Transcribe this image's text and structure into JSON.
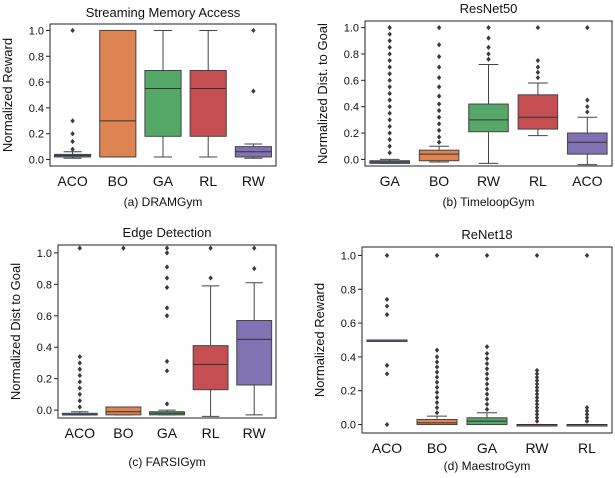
{
  "chart_data": [
    {
      "type": "box",
      "title": "Streaming Memory Access",
      "caption": "(a) DRAMGym",
      "xlabel": "",
      "ylabel": "Normalized Reward",
      "ylim": [
        -0.05,
        1.05
      ],
      "yticks": [
        0.0,
        0.2,
        0.4,
        0.6,
        0.8,
        1.0
      ],
      "ytick_labels": [
        "0.0",
        "0.2",
        "0.4",
        "0.6",
        "0.8",
        "1.0"
      ],
      "categories": [
        "ACO",
        "BO",
        "GA",
        "RL",
        "RW"
      ],
      "colors": [
        "#5b7fc0",
        "#dd8452",
        "#55a868",
        "#c44e52",
        "#8172b3"
      ],
      "boxes": [
        {
          "q1": 0.02,
          "median": 0.03,
          "q3": 0.04,
          "whislo": 0.01,
          "whishi": 0.06,
          "fliers": [
            0.08,
            0.14,
            0.2,
            0.3,
            1.0
          ]
        },
        {
          "q1": 0.02,
          "median": 0.3,
          "q3": 1.0,
          "whislo": 0.02,
          "whishi": 1.0,
          "fliers": []
        },
        {
          "q1": 0.18,
          "median": 0.55,
          "q3": 0.69,
          "whislo": 0.02,
          "whishi": 1.0,
          "fliers": []
        },
        {
          "q1": 0.18,
          "median": 0.55,
          "q3": 0.69,
          "whislo": 0.02,
          "whishi": 1.0,
          "fliers": []
        },
        {
          "q1": 0.02,
          "median": 0.06,
          "q3": 0.1,
          "whislo": 0.01,
          "whishi": 0.12,
          "fliers": [
            0.53,
            1.0
          ]
        }
      ]
    },
    {
      "type": "box",
      "title": "ResNet50",
      "caption": "(b) TimeloopGym",
      "xlabel": "",
      "ylabel": "Normalized Dist. to Goal",
      "ylim": [
        -0.05,
        1.05
      ],
      "yticks": [
        0.0,
        0.2,
        0.4,
        0.6,
        0.8,
        1.0
      ],
      "ytick_labels": [
        "0.0",
        "0.2",
        "0.4",
        "0.6",
        "0.8",
        "1.0"
      ],
      "categories": [
        "GA",
        "BO",
        "RW",
        "RL",
        "ACO"
      ],
      "colors": [
        "#5b7fc0",
        "#dd8452",
        "#55a868",
        "#c44e52",
        "#8172b3"
      ],
      "boxes": [
        {
          "q1": -0.03,
          "median": -0.02,
          "q3": -0.01,
          "whislo": -0.03,
          "whishi": 0.0,
          "fliers": [
            0.05,
            0.1,
            0.15,
            0.2,
            0.25,
            0.3,
            0.35,
            0.4,
            0.45,
            0.5,
            0.55,
            0.6,
            0.65,
            0.7,
            0.75,
            0.8,
            0.85,
            0.9,
            0.95,
            1.0
          ]
        },
        {
          "q1": -0.01,
          "median": 0.04,
          "q3": 0.07,
          "whislo": -0.02,
          "whishi": 0.1,
          "fliers": [
            0.13,
            0.17,
            0.22,
            0.27,
            0.32,
            0.37,
            0.42,
            0.48,
            0.55,
            0.62,
            0.7,
            0.78,
            0.87,
            1.0
          ]
        },
        {
          "q1": 0.21,
          "median": 0.3,
          "q3": 0.42,
          "whislo": -0.03,
          "whishi": 0.72,
          "fliers": [
            0.76,
            0.8,
            0.85,
            0.92,
            1.0
          ]
        },
        {
          "q1": 0.23,
          "median": 0.32,
          "q3": 0.49,
          "whislo": 0.18,
          "whishi": 0.58,
          "fliers": [
            0.62,
            0.66,
            0.7,
            0.75,
            1.0
          ]
        },
        {
          "q1": 0.04,
          "median": 0.13,
          "q3": 0.2,
          "whislo": -0.04,
          "whishi": 0.32,
          "fliers": [
            0.36,
            0.4,
            0.45,
            1.0
          ]
        }
      ]
    },
    {
      "type": "box",
      "title": "Edge Detection",
      "caption": "(c) FARSIGym",
      "xlabel": "",
      "ylabel": "Normalized Dist to Goal",
      "ylim": [
        -0.05,
        1.05
      ],
      "yticks": [
        0.0,
        0.2,
        0.4,
        0.6,
        0.8,
        1.0
      ],
      "ytick_labels": [
        "0.0",
        "0.2",
        "0.4",
        "0.6",
        "0.8",
        "1.0"
      ],
      "categories": [
        "ACO",
        "BO",
        "GA",
        "RL",
        "RW"
      ],
      "colors": [
        "#5b7fc0",
        "#dd8452",
        "#55a868",
        "#c44e52",
        "#8172b3"
      ],
      "boxes": [
        {
          "q1": -0.03,
          "median": -0.03,
          "q3": -0.02,
          "whislo": -0.03,
          "whishi": -0.01,
          "fliers": [
            0.02,
            0.06,
            0.1,
            0.14,
            0.18,
            0.22,
            0.26,
            0.3,
            0.34,
            1.03
          ]
        },
        {
          "q1": -0.03,
          "median": -0.01,
          "q3": 0.02,
          "whislo": -0.03,
          "whishi": 0.02,
          "fliers": [
            1.03
          ]
        },
        {
          "q1": -0.03,
          "median": -0.02,
          "q3": -0.01,
          "whislo": -0.03,
          "whishi": 0.0,
          "fliers": [
            0.04,
            0.25,
            0.31,
            0.6,
            0.65,
            0.78,
            0.84,
            0.91,
            1.0,
            1.03
          ]
        },
        {
          "q1": 0.13,
          "median": 0.29,
          "q3": 0.41,
          "whislo": -0.04,
          "whishi": 0.79,
          "fliers": [
            0.84,
            1.03
          ]
        },
        {
          "q1": 0.16,
          "median": 0.45,
          "q3": 0.57,
          "whislo": -0.03,
          "whishi": 0.81,
          "fliers": [
            0.9,
            1.03
          ]
        }
      ]
    },
    {
      "type": "box",
      "title": "ReNet18",
      "caption": "(d) MaestroGym",
      "xlabel": "",
      "ylabel": "Normalized Reward",
      "ylim": [
        -0.05,
        1.05
      ],
      "yticks": [
        0.0,
        0.2,
        0.4,
        0.6,
        0.8,
        1.0
      ],
      "ytick_labels": [
        "0.0",
        "0.2",
        "0.4",
        "0.6",
        "0.8",
        "1.0"
      ],
      "categories": [
        "ACO",
        "BO",
        "GA",
        "RW",
        "RL"
      ],
      "colors": [
        "#5b7fc0",
        "#dd8452",
        "#55a868",
        "#c44e52",
        "#8172b3"
      ],
      "boxes": [
        {
          "q1": 0.5,
          "median": 0.5,
          "q3": 0.5,
          "whislo": 0.5,
          "whishi": 0.5,
          "fliers": [
            0.0,
            0.3,
            0.35,
            0.65,
            0.7,
            0.74,
            1.0
          ]
        },
        {
          "q1": 0.0,
          "median": 0.01,
          "q3": 0.03,
          "whislo": 0.0,
          "whishi": 0.05,
          "fliers": [
            0.07,
            0.1,
            0.13,
            0.16,
            0.19,
            0.22,
            0.25,
            0.28,
            0.31,
            0.34,
            0.37,
            0.4,
            0.44,
            1.0
          ]
        },
        {
          "q1": 0.0,
          "median": 0.02,
          "q3": 0.04,
          "whislo": 0.0,
          "whishi": 0.07,
          "fliers": [
            0.09,
            0.12,
            0.15,
            0.18,
            0.21,
            0.24,
            0.27,
            0.3,
            0.33,
            0.36,
            0.39,
            0.42,
            0.46,
            1.0
          ]
        },
        {
          "q1": 0.0,
          "median": 0.0,
          "q3": 0.0,
          "whislo": 0.0,
          "whishi": 0.0,
          "fliers": [
            0.02,
            0.04,
            0.06,
            0.08,
            0.1,
            0.12,
            0.14,
            0.16,
            0.18,
            0.2,
            0.22,
            0.24,
            0.26,
            0.28,
            0.3,
            0.32,
            1.0
          ]
        },
        {
          "q1": 0.0,
          "median": 0.0,
          "q3": 0.0,
          "whislo": 0.0,
          "whishi": 0.0,
          "fliers": [
            0.02,
            0.04,
            0.06,
            0.08,
            0.1,
            1.0
          ]
        }
      ]
    }
  ]
}
